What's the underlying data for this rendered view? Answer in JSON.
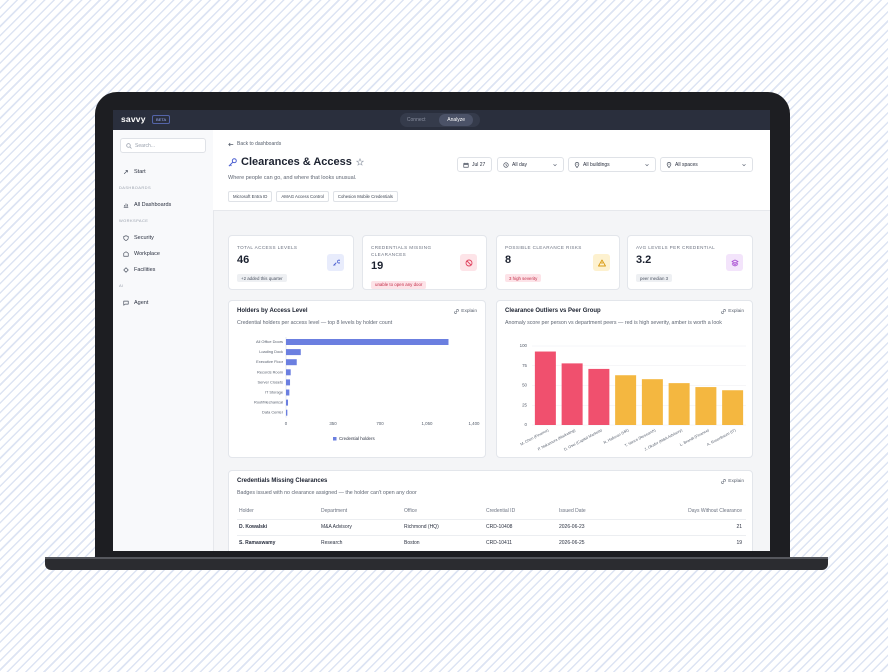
{
  "app": {
    "brand": "savvy",
    "badge": "BETA",
    "tabs": [
      "Connect",
      "Analyze"
    ]
  },
  "sidebar": {
    "search": "Search...",
    "start": "Start",
    "sections": [
      {
        "heading": "DASHBOARDS",
        "items": [
          "All Dashboards"
        ]
      },
      {
        "heading": "WORKSPACE",
        "items": [
          "Security",
          "Workplace",
          "Facilities"
        ]
      },
      {
        "heading": "AI",
        "items": [
          "Agent"
        ]
      }
    ]
  },
  "header": {
    "back": "Back to dashboards",
    "title": "Clearances & Access",
    "subtitle": "Where people can go, and where that looks unusual.",
    "sources": [
      "Microsoft Entra ID",
      "AMAG Access Control",
      "Cohesion Mobile Credentials"
    ],
    "filters": [
      "Jul 27",
      "All day",
      "All buildings",
      "All spaces"
    ]
  },
  "kpis": [
    {
      "label": "TOTAL ACCESS LEVELS",
      "value": 46,
      "note": "+2 added this quarter"
    },
    {
      "label": "CREDENTIALS MISSING CLEARANCES",
      "value": 19,
      "note": "unable to open any door"
    },
    {
      "label": "POSSIBLE CLEARANCE RISKS",
      "value": 8,
      "note": "3 high severity"
    },
    {
      "label": "AVG LEVELS PER CREDENTIAL",
      "value": 3.2,
      "note": "peer median 3"
    }
  ],
  "chart_data": [
    {
      "type": "bar",
      "orientation": "horizontal",
      "title": "Holders by Access Level",
      "action": "Explain",
      "subtitle": "Credential holders per access level — top 8 levels by holder count",
      "categories": [
        "All Office Doors",
        "Loading Dock",
        "Executive Floor",
        "Records Room",
        "Server Closets",
        "IT Storage",
        "Roof/Mechanical",
        "Data Center"
      ],
      "series": [
        {
          "name": "Credential holders",
          "color": "#6b7fe0",
          "values": [
            1210,
            110,
            80,
            35,
            30,
            25,
            15,
            10
          ]
        }
      ],
      "xlim": [
        0,
        1400
      ],
      "xticks": [
        0,
        350,
        700,
        {
          "value": 1050,
          "label": "1,050"
        },
        {
          "value": 1400,
          "label": "1,400"
        }
      ]
    },
    {
      "type": "bar",
      "title": "Clearance Outliers vs Peer Group",
      "action": "Explain",
      "subtitle": "Anomaly score per person vs department peers — red is high severity, amber is worth a look",
      "categories": [
        "M. Chen (Finance)",
        "P. Nakamura (Marketing)",
        "D. Osei (Capital Markets)",
        "R. Halloran (HR)",
        "T. Vance (Research)",
        "J. Okafor (M&A Advisory)",
        "L. Brandt (Finance)",
        "A. Rosenbaum (IT)"
      ],
      "values": [
        93,
        78,
        71,
        63,
        58,
        53,
        48,
        44
      ],
      "colors": [
        "#f0506e",
        "#f0506e",
        "#f0506e",
        "#f4b740",
        "#f4b740",
        "#f4b740",
        "#f4b740",
        "#f4b740"
      ],
      "ylim": [
        0,
        100
      ],
      "yticks": [
        0,
        25,
        50,
        75,
        100
      ],
      "grid": true
    }
  ],
  "table": {
    "title": "Credentials Missing Clearances",
    "action": "Explain",
    "subtitle": "Badges issued with no clearance assigned — the holder can't open any door",
    "columns": [
      "Holder",
      "Department",
      "Office",
      "Credential ID",
      "Issued Date",
      "Days Without Clearance"
    ],
    "rows": [
      [
        "D. Kowalski",
        "M&A Advisory",
        "Richmond (HQ)",
        "CRD-10408",
        "2026-06-23",
        21
      ],
      [
        "S. Ramaswamy",
        "Research",
        "Boston",
        "CRD-10411",
        "2026-06-25",
        19
      ]
    ]
  }
}
